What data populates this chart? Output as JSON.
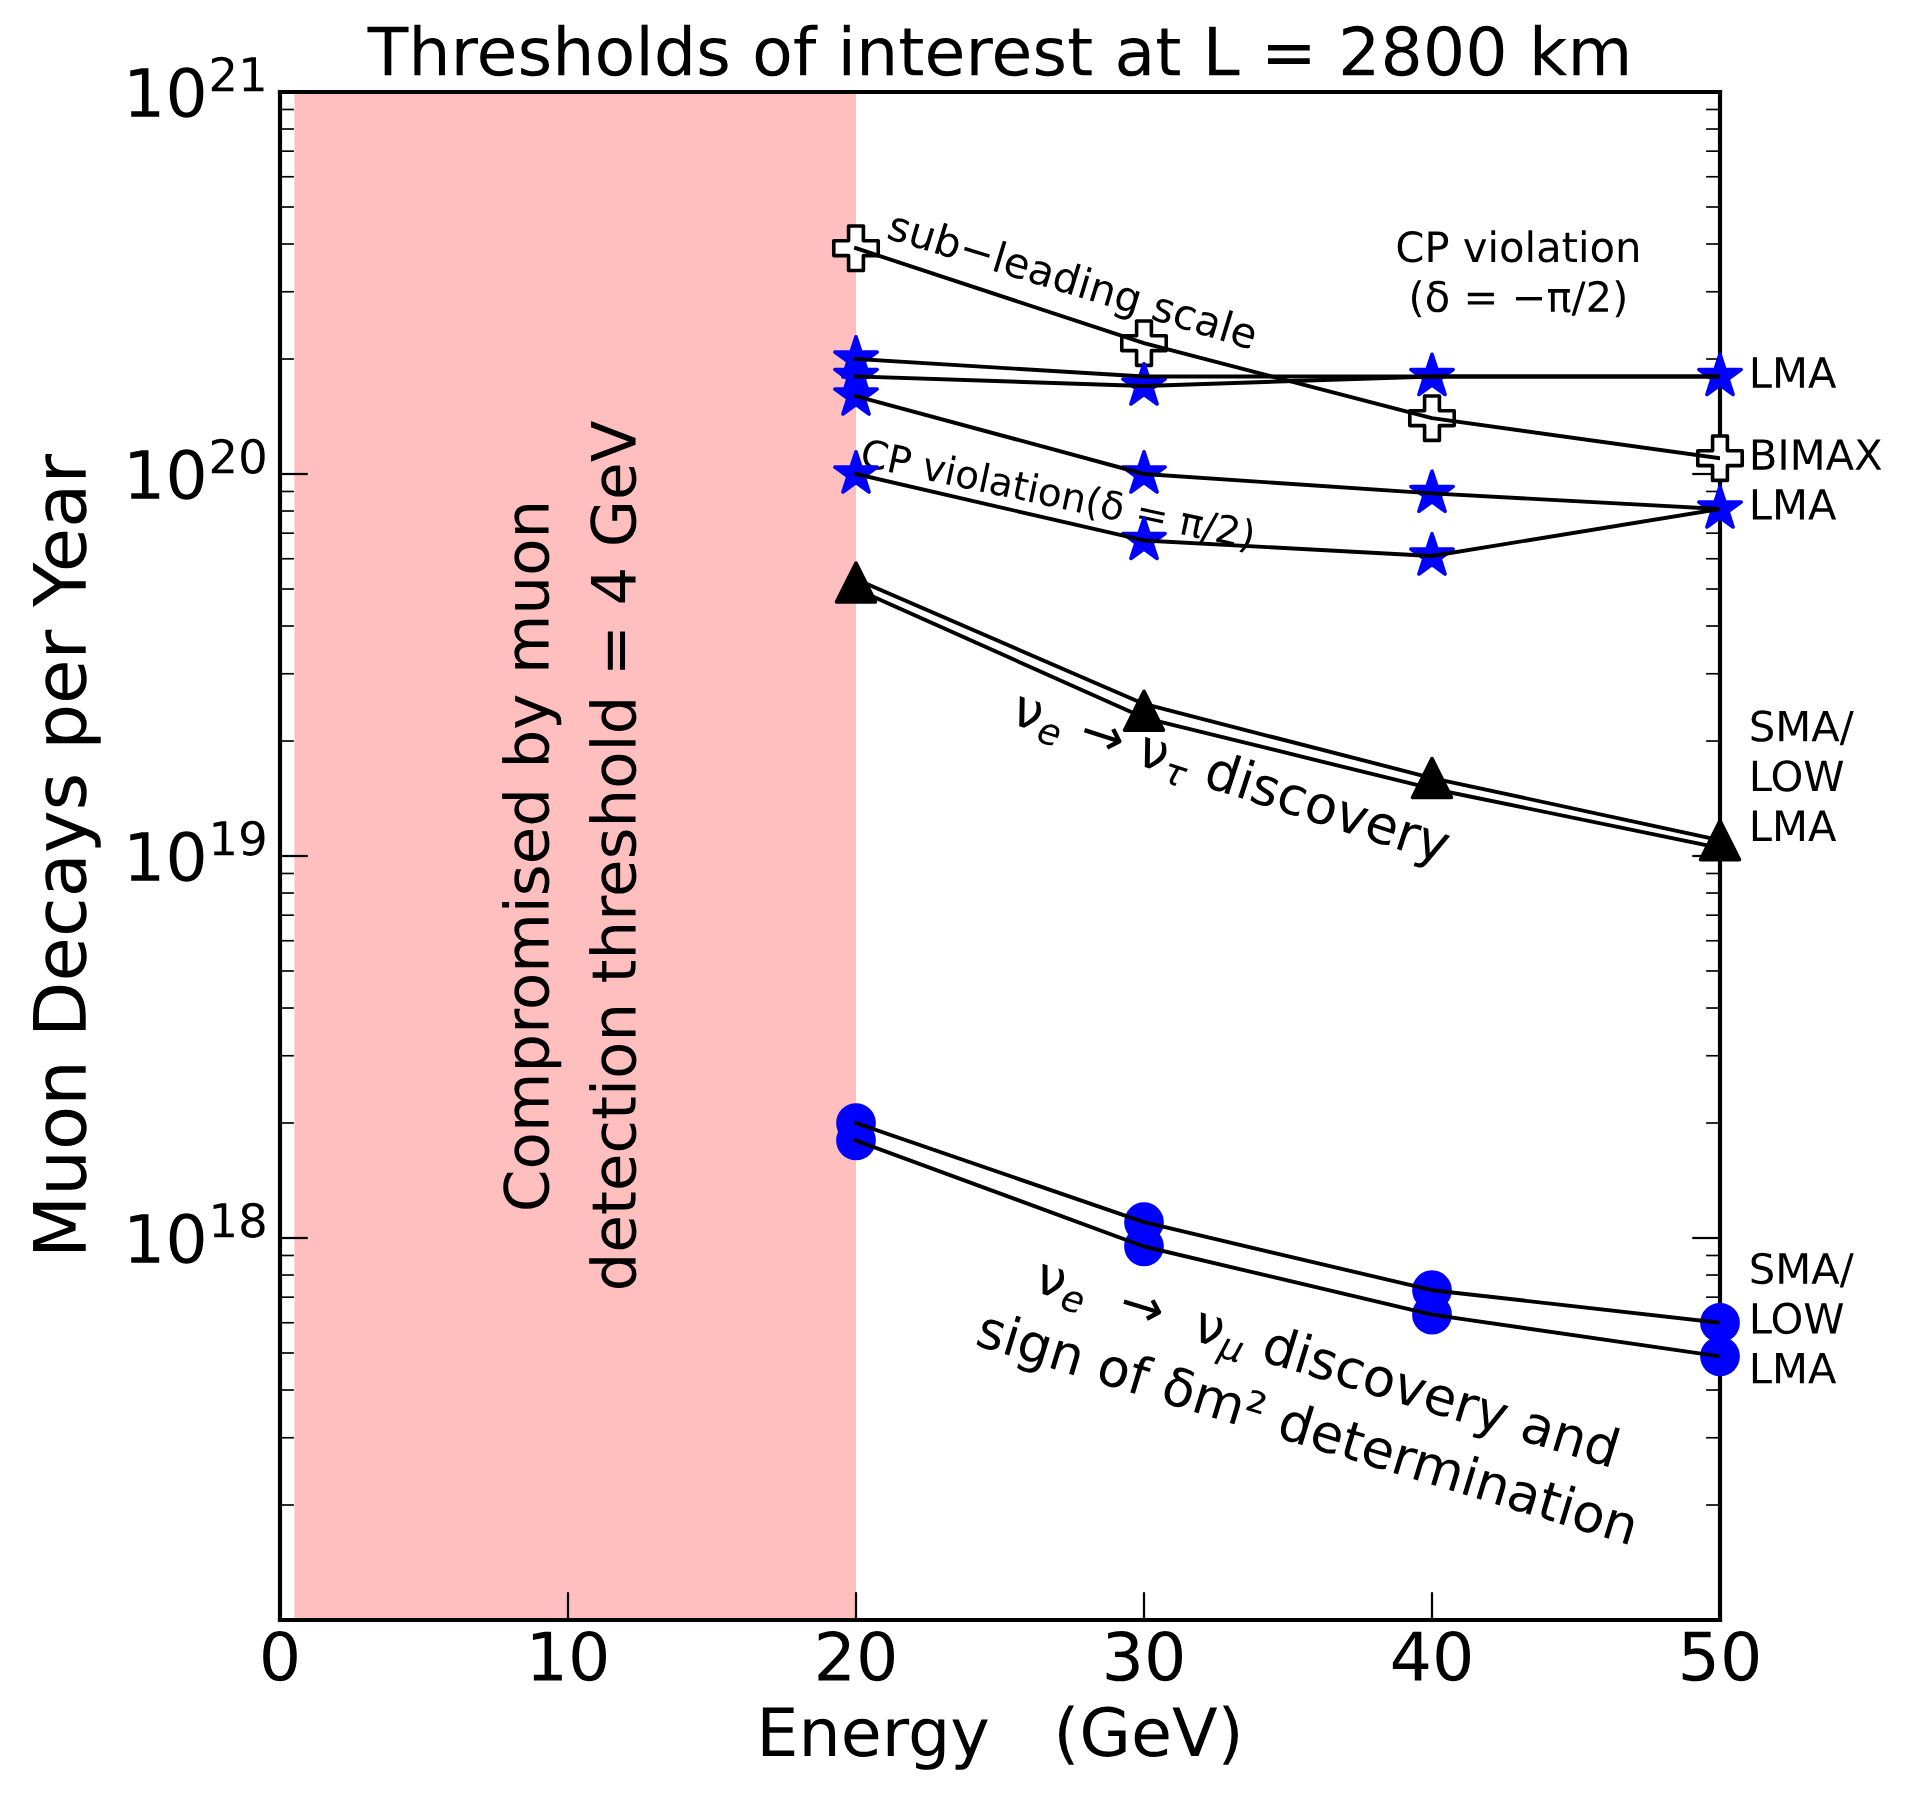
{
  "chart_data": {
    "type": "line",
    "title": "Thresholds of interest at L = 2800 km",
    "xlabel": "Energy   (GeV)",
    "ylabel": "Muon Decays per Year",
    "xlim": [
      0,
      50
    ],
    "xticks": [
      0,
      10,
      20,
      30,
      40,
      50
    ],
    "ylim": [
      1e+17,
      1e+21
    ],
    "log": "y",
    "yticks": [
      {
        "value": 1e+18,
        "label": "10$^{18}$"
      },
      {
        "value": 1e+19,
        "label": "10$^{19}$"
      },
      {
        "value": 1e+20,
        "label": "10$^{20}$"
      },
      {
        "value": 1e+21,
        "label": "10$^{21}$"
      }
    ],
    "grid": false,
    "legend": false,
    "series": [
      {
        "color": "#000000",
        "x": [
          20,
          30,
          40,
          50
        ],
        "values": [
          3.9e+20,
          2.2e+20,
          1.4e+20,
          1.1e+20
        ]
      },
      {
        "color": "#000000",
        "x": [
          20,
          30,
          40,
          50
        ],
        "values": [
          2e+20,
          1.8e+20,
          1.8e+20,
          1.8e+20
        ]
      },
      {
        "color": "#000000",
        "x": [
          20,
          30,
          40,
          50
        ],
        "values": [
          1.8e+20,
          1.7e+20,
          1.8e+20,
          1.8e+20
        ]
      },
      {
        "color": "#000000",
        "x": [
          20,
          30,
          40,
          50
        ],
        "values": [
          1.6e+20,
          1e+20,
          8.9e+19,
          8.1e+19
        ]
      },
      {
        "color": "#000000",
        "x": [
          20,
          30,
          40,
          50
        ],
        "values": [
          1e+20,
          6.7e+19,
          6.1e+19,
          8.1e+19
        ]
      },
      {
        "color": "#000000",
        "x": [
          20,
          30,
          40,
          50
        ],
        "values": [
          5.3e+19,
          2.5e+19,
          1.6e+19,
          1.1e+19
        ]
      },
      {
        "color": "#000000",
        "x": [
          20,
          30,
          40,
          50
        ],
        "values": [
          5e+19,
          2.3e+19,
          1.5e+19,
          1.05e+19
        ]
      },
      {
        "color": "#000000",
        "x": [
          20,
          30,
          40,
          50
        ],
        "values": [
          2e+18,
          1.1e+18,
          7.3e+17,
          6e+17
        ]
      },
      {
        "color": "#000000",
        "x": [
          20,
          30,
          40,
          50
        ],
        "values": [
          1.8e+18,
          9.5e+17,
          6.3e+17,
          4.9e+17
        ]
      },
      {
        "type": "scatter",
        "marker": "cross",
        "color": "#ffffff",
        "x": [
          20,
          30,
          40,
          50
        ],
        "values": [
          3.9e+20,
          2.2e+20,
          1.4e+20,
          1.1e+20
        ]
      },
      {
        "type": "scatter",
        "marker": "star",
        "color": "#0000ff",
        "x": [
          20,
          20,
          20,
          20,
          30,
          30,
          30,
          40,
          40,
          40,
          50,
          50
        ],
        "values": [
          2e+20,
          1.8e+20,
          1.6e+20,
          1e+20,
          1.7e+20,
          1e+20,
          6.7e+19,
          1.8e+20,
          8.9e+19,
          6.1e+19,
          1.8e+20,
          8.1e+19
        ]
      },
      {
        "type": "scatter",
        "marker": "triangle",
        "color": "#000000",
        "x": [
          20,
          30,
          40,
          50
        ],
        "values": [
          5.2e+19,
          2.4e+19,
          1.6e+19,
          1.1e+19
        ]
      },
      {
        "type": "scatter",
        "marker": "circle",
        "color": "#0000ff",
        "x": [
          20,
          20,
          30,
          30,
          40,
          40,
          50,
          50
        ],
        "values": [
          2e+18,
          1.8e+18,
          1.1e+18,
          9.5e+17,
          7.3e+17,
          6.3e+17,
          6e+17,
          4.9e+17
        ]
      }
    ],
    "bands": [
      {
        "axis": "x",
        "from": 0.5,
        "to": 20,
        "label": "Compromised by muon\ndetection threshold = 4 GeV",
        "color": "#ff0000"
      }
    ],
    "annotations": [
      "sub−leading scale",
      "CP violation\n(δ = −π/2)",
      "CP violation(δ = π/2)",
      "ν$_{e}$ → ν$_{τ}$ discovery",
      "ν$_{e}$  →  ν$_{μ}$ discovery and\nsign of δm² determination",
      "LMA",
      "BIMAX\nLMA",
      "SMA/\nLOW\nLMA",
      "SMA/\nLOW\nLMA"
    ]
  }
}
